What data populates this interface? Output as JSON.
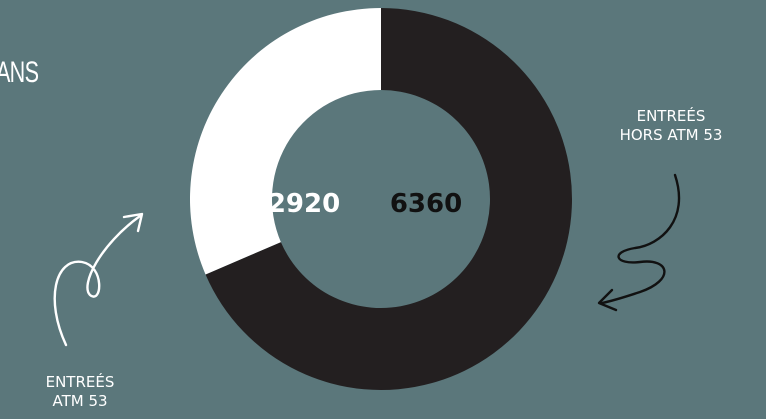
{
  "title_fragment": "ANS",
  "chart_data": {
    "type": "pie",
    "donut": true,
    "categories": [
      "ENTREÉS ATM 53",
      "ENTREÉS HORS ATM 53"
    ],
    "values": [
      2920,
      6360
    ],
    "colors": [
      "#ffffff",
      "#231f20"
    ],
    "value_labels": [
      "2920",
      "6360"
    ],
    "annotations": [
      {
        "lines": [
          "ENTREÉS",
          "HORS ATM 53"
        ],
        "points_to": "ENTREÉS HORS ATM 53",
        "position": "right"
      },
      {
        "lines": [
          "ENTREÉS",
          "ATM 53"
        ],
        "points_to": "ENTREÉS ATM 53",
        "position": "bottom-left"
      }
    ]
  },
  "colors": {
    "background": "#5b777b",
    "dark_segment": "#231f20",
    "light_segment": "#ffffff"
  }
}
